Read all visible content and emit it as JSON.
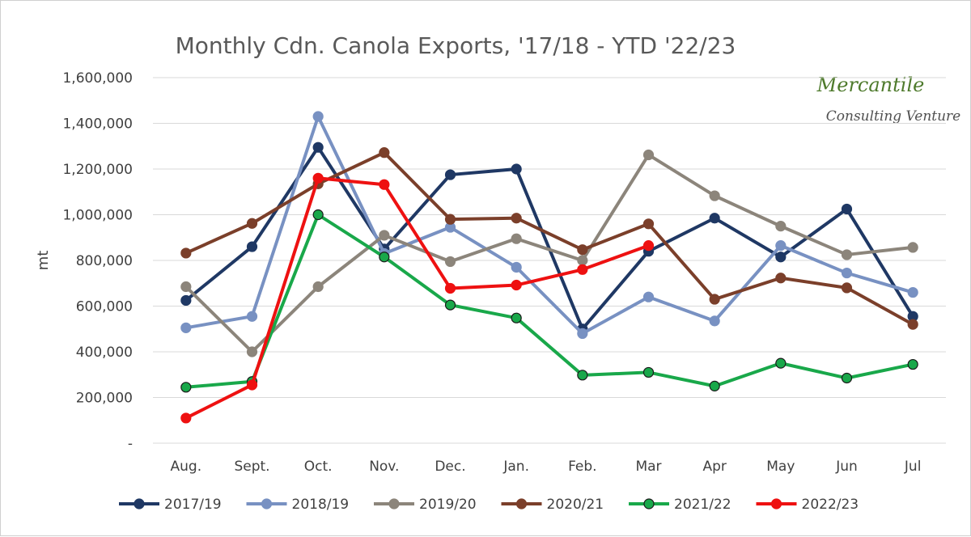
{
  "chart_data": {
    "type": "line",
    "title": "Monthly Cdn. Canola Exports, '17/18 - YTD '22/23",
    "ylabel": "mt",
    "xlabel": "",
    "ylim": [
      0,
      1600000
    ],
    "yticks": [
      0,
      200000,
      400000,
      600000,
      800000,
      1000000,
      1200000,
      1400000,
      1600000
    ],
    "ytick_labels": [
      "-",
      "200,000",
      "400,000",
      "600,000",
      "800,000",
      "1,000,000",
      "1,200,000",
      "1,400,000",
      "1,600,000"
    ],
    "grid": "horizontal",
    "legend_position": "bottom",
    "categories": [
      "Aug.",
      "Sept.",
      "Oct.",
      "Nov.",
      "Dec.",
      "Jan.",
      "Feb.",
      "Mar",
      "Apr",
      "May",
      "Jun",
      "Jul"
    ],
    "series": [
      {
        "name": "2017/19",
        "color": "#1f3864",
        "values": [
          625000,
          860000,
          1295000,
          850000,
          1175000,
          1200000,
          500000,
          840000,
          985000,
          815000,
          1025000,
          555000
        ]
      },
      {
        "name": "2018/19",
        "color": "#7891c2",
        "values": [
          505000,
          555000,
          1430000,
          830000,
          945000,
          770000,
          480000,
          640000,
          535000,
          865000,
          745000,
          660000
        ]
      },
      {
        "name": "2019/20",
        "color": "#8c857b",
        "values": [
          685000,
          400000,
          685000,
          910000,
          795000,
          895000,
          800000,
          1262000,
          1083000,
          950000,
          825000,
          857000
        ]
      },
      {
        "name": "2020/21",
        "color": "#7b3f2a",
        "values": [
          832000,
          962000,
          1135000,
          1272000,
          980000,
          985000,
          847000,
          960000,
          630000,
          723000,
          680000,
          520000
        ]
      },
      {
        "name": "2021/22",
        "color": "#19a84a",
        "values": [
          245000,
          270000,
          1000000,
          815000,
          605000,
          548000,
          298000,
          310000,
          250000,
          350000,
          285000,
          345000
        ]
      },
      {
        "name": "2022/23",
        "color": "#ee1111",
        "values": [
          110000,
          255000,
          1160000,
          1132000,
          678000,
          692000,
          760000,
          865000,
          null,
          null,
          null,
          null
        ]
      }
    ]
  },
  "watermark": {
    "line1": "Mercantile",
    "line2": "Consulting Venture"
  }
}
